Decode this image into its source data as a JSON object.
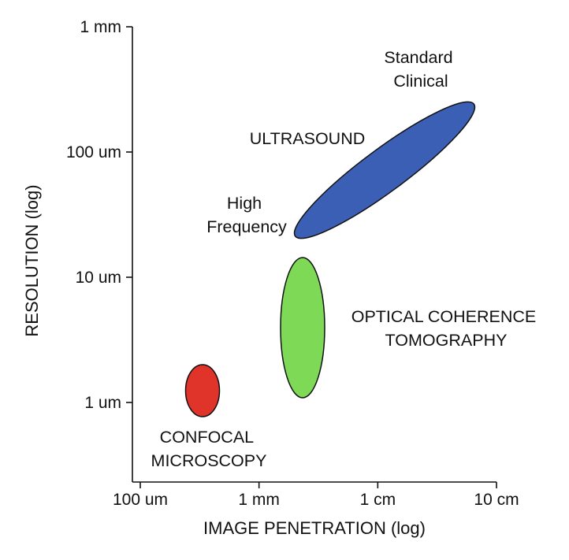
{
  "chart_data": {
    "type": "scatter",
    "title": "",
    "xlabel": "IMAGE PENETRATION (log)",
    "ylabel": "RESOLUTION (log)",
    "x_scale": "log",
    "y_scale": "log",
    "x_unit": "mm",
    "y_unit": "um",
    "xlim": [
      0.1,
      100
    ],
    "ylim": [
      0.3,
      1000
    ],
    "x_ticks": [
      {
        "value": 0.1,
        "label": "100 um"
      },
      {
        "value": 1,
        "label": "1 mm"
      },
      {
        "value": 10,
        "label": "1 cm"
      },
      {
        "value": 100,
        "label": "10 cm"
      }
    ],
    "y_ticks": [
      {
        "value": 1,
        "label": "1 um"
      },
      {
        "value": 10,
        "label": "10 um"
      },
      {
        "value": 100,
        "label": "100 um"
      },
      {
        "value": 1000,
        "label": "1 mm"
      }
    ],
    "grid": false,
    "legend": "none",
    "series": [
      {
        "name": "ULTRASOUND",
        "shape": "ellipse",
        "color": "#3b5fb4",
        "center": [
          7.5,
          50
        ],
        "extent_x": [
          1.6,
          40
        ],
        "extent_y": [
          17,
          270
        ]
      },
      {
        "name": "OPTICAL COHERENCE TOMOGRAPHY",
        "shape": "ellipse",
        "color": "#7ed957",
        "center": [
          1.7,
          4
        ],
        "extent_x": [
          1.2,
          2.4
        ],
        "extent_y": [
          1.1,
          14
        ]
      },
      {
        "name": "CONFOCAL MICROSCOPY",
        "shape": "ellipse",
        "color": "#e0332a",
        "center": [
          0.35,
          1.2
        ],
        "extent_x": [
          0.27,
          0.47
        ],
        "extent_y": [
          0.75,
          1.9
        ]
      }
    ],
    "annotations": [
      {
        "text": [
          "Standard",
          "Clinical"
        ]
      },
      {
        "text": [
          "ULTRASOUND"
        ]
      },
      {
        "text": [
          "High",
          "Frequency"
        ]
      },
      {
        "text": [
          "OPTICAL COHERENCE",
          "TOMOGRAPHY"
        ]
      },
      {
        "text": [
          "CONFOCAL",
          "MICROSCOPY"
        ]
      }
    ]
  }
}
